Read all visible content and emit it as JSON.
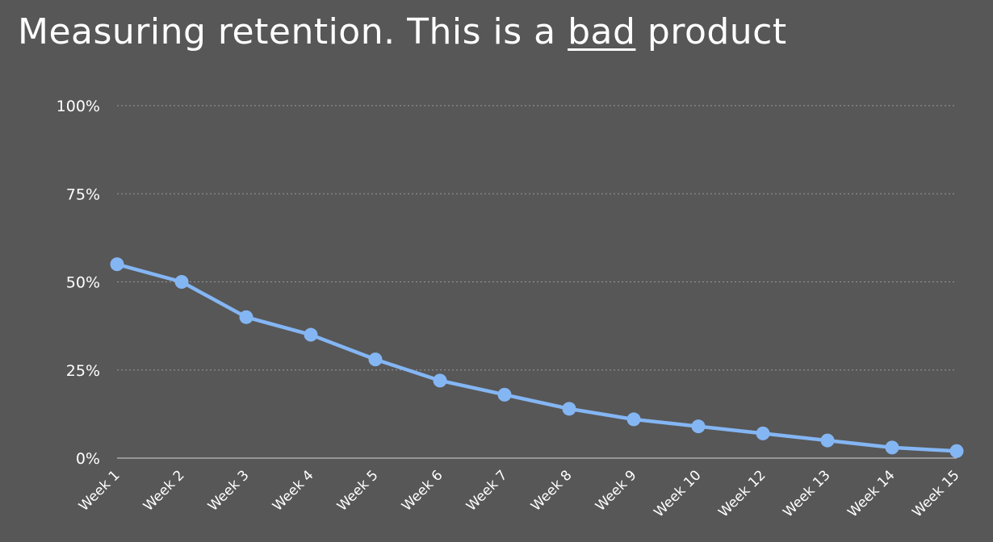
{
  "title": {
    "before": "Measuring retention. This is a ",
    "emphasis": "bad",
    "after": " product"
  },
  "colors": {
    "background": "#575757",
    "line": "#84B6F4",
    "text": "#FFFFFF",
    "grid": "#9A9A9A"
  },
  "chart_data": {
    "type": "line",
    "title": "Measuring retention. This is a bad product",
    "xlabel": "",
    "ylabel": "",
    "categories": [
      "Week 1",
      "Week 2",
      "Week 3",
      "Week 4",
      "Week 5",
      "Week 6",
      "Week 7",
      "Week 8",
      "Week 9",
      "Week 10",
      "Week 12",
      "Week 13",
      "Week 14",
      "Week 15"
    ],
    "series": [
      {
        "values": [
          55,
          50,
          40,
          35,
          28,
          22,
          18,
          14,
          11,
          9,
          7,
          5,
          3,
          2
        ]
      }
    ],
    "ylim": [
      0,
      100
    ],
    "yticks": [
      0,
      25,
      50,
      75,
      100
    ],
    "ytick_labels": [
      "0%",
      "25%",
      "50%",
      "75%",
      "100%"
    ],
    "grid": true,
    "grid_style": "dotted",
    "legend": "none",
    "markers": true
  }
}
